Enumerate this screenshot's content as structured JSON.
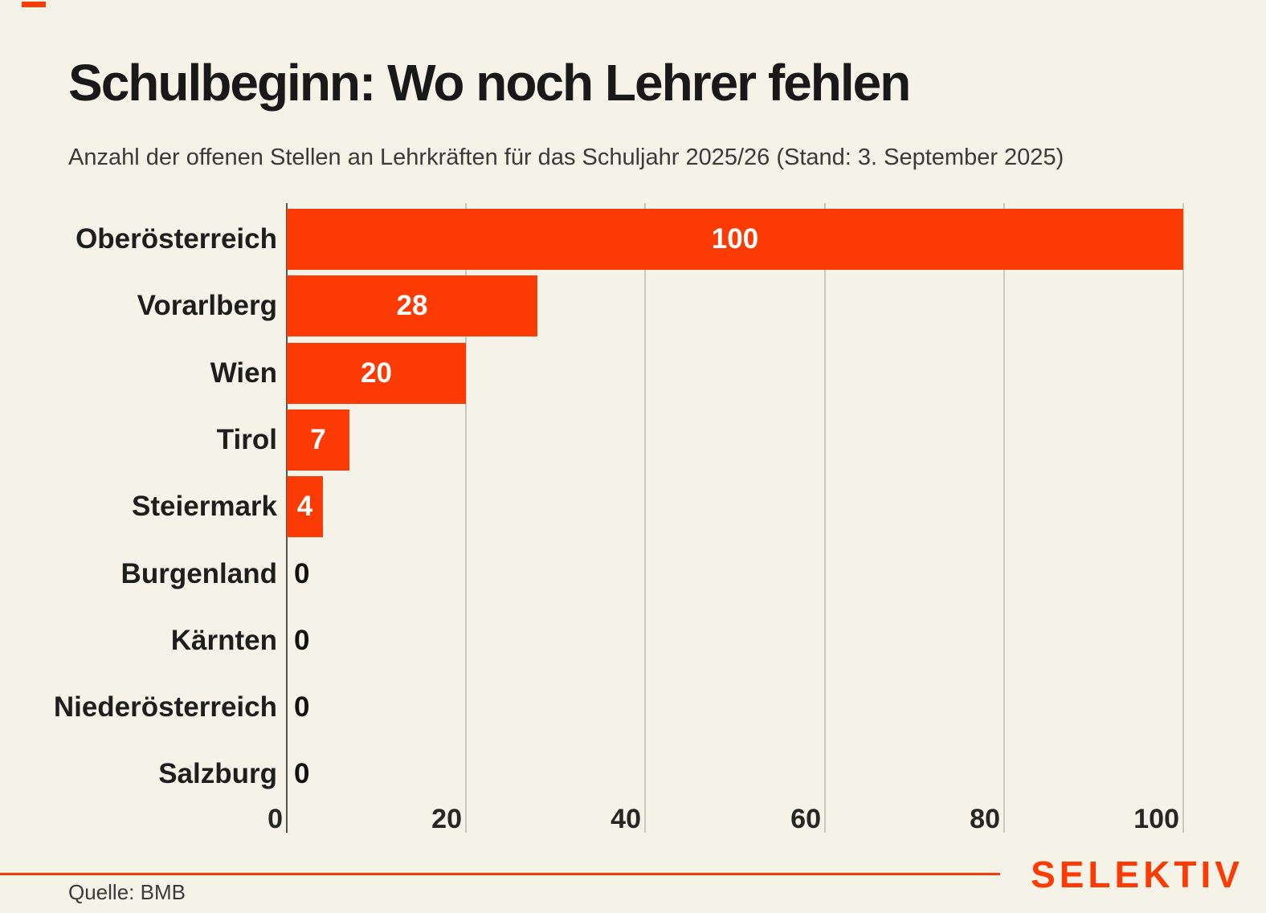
{
  "title": "Schulbeginn: Wo noch Lehrer fehlen",
  "subtitle": "Anzahl der offenen Stellen an Lehrkräften für das Schuljahr 2025/26 (Stand: 3. September 2025)",
  "source": "Quelle: BMB",
  "brand": "SELEKTIV",
  "colors": {
    "background": "#f5f3e8",
    "accent": "#fb3b03",
    "bar": "#fb3b03",
    "title_text": "#191919",
    "subtitle_text": "#3a3a3a",
    "axis_line": "#55544d",
    "gridline": "#c9c8bd",
    "value_label_inside": "#ffffff",
    "value_label_zero": "#111111"
  },
  "chart_data": {
    "type": "bar",
    "orientation": "horizontal",
    "title": "Schulbeginn: Wo noch Lehrer fehlen",
    "subtitle": "Anzahl der offenen Stellen an Lehrkräften für das Schuljahr 2025/26 (Stand: 3. September 2025)",
    "categories": [
      "Oberösterreich",
      "Vorarlberg",
      "Wien",
      "Tirol",
      "Steiermark",
      "Burgenland",
      "Kärnten",
      "Niederösterreich",
      "Salzburg"
    ],
    "values": [
      100,
      28,
      20,
      7,
      4,
      0,
      0,
      0,
      0
    ],
    "xlabel": "",
    "ylabel": "",
    "xlim": [
      0,
      100
    ],
    "x_ticks": [
      0,
      20,
      40,
      60,
      80,
      100
    ],
    "grid": "vertical gridlines at x ticks",
    "legend": "none",
    "value_label_style": "inside bar centered for values > 0, black outside axis for 0"
  }
}
